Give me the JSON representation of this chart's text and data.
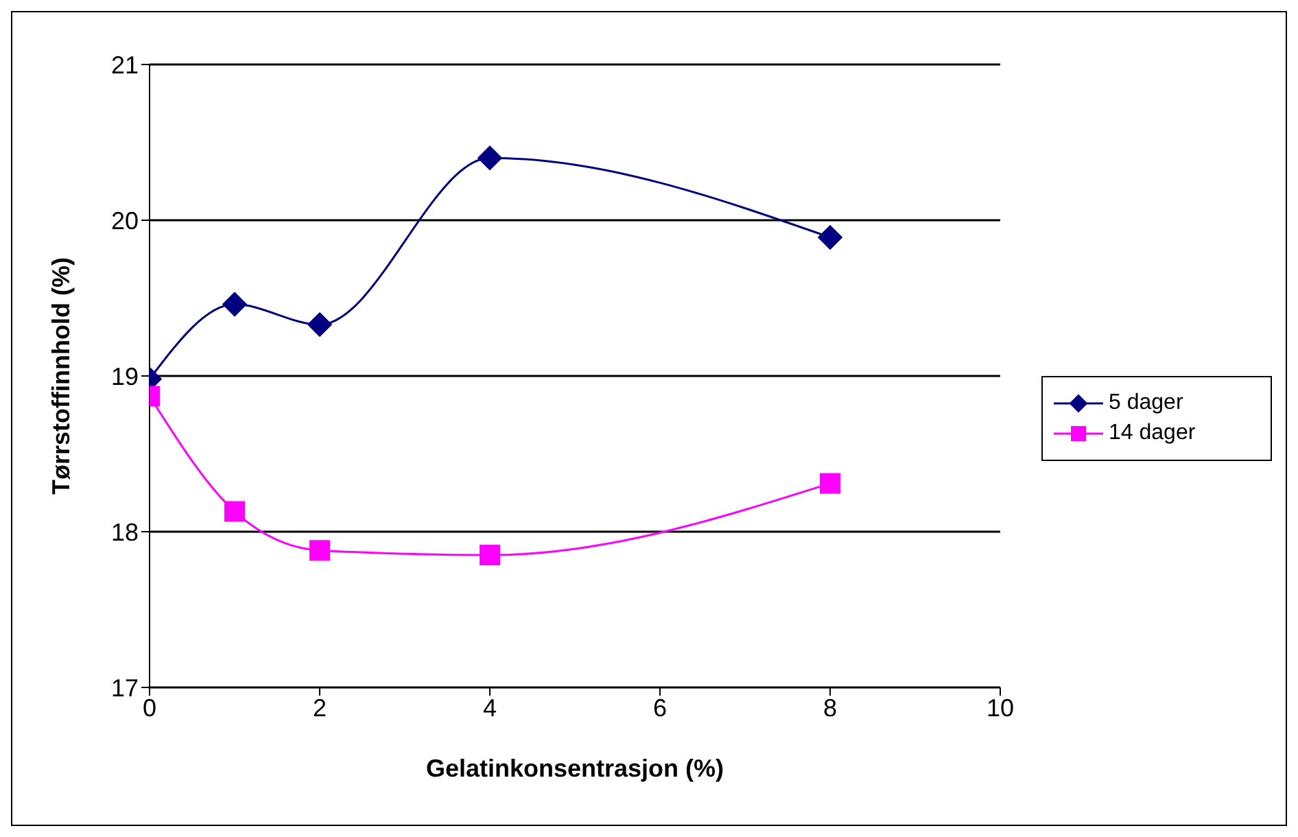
{
  "chart_data": {
    "type": "line",
    "xlabel": "Gelatinkonsentrasjon  (%)",
    "ylabel": "Tørrstoffinnhold  (%)",
    "series": [
      {
        "name": "5 dager",
        "color": "#000080",
        "marker": "diamond",
        "x": [
          0,
          1,
          2,
          4,
          8
        ],
        "values": [
          18.98,
          19.46,
          19.33,
          20.4,
          19.89
        ]
      },
      {
        "name": "14 dager",
        "color": "#ff00ff",
        "marker": "square",
        "x": [
          0,
          1,
          2,
          4,
          8
        ],
        "values": [
          18.87,
          18.13,
          17.88,
          17.85,
          18.31
        ]
      }
    ],
    "xlim": [
      0,
      10
    ],
    "xticks": [
      0,
      2,
      4,
      6,
      8,
      10
    ],
    "ylim": [
      17,
      21
    ],
    "yticks": [
      17,
      18,
      19,
      20,
      21
    ],
    "grid": "y",
    "legend": "right",
    "line_style": "solid"
  }
}
